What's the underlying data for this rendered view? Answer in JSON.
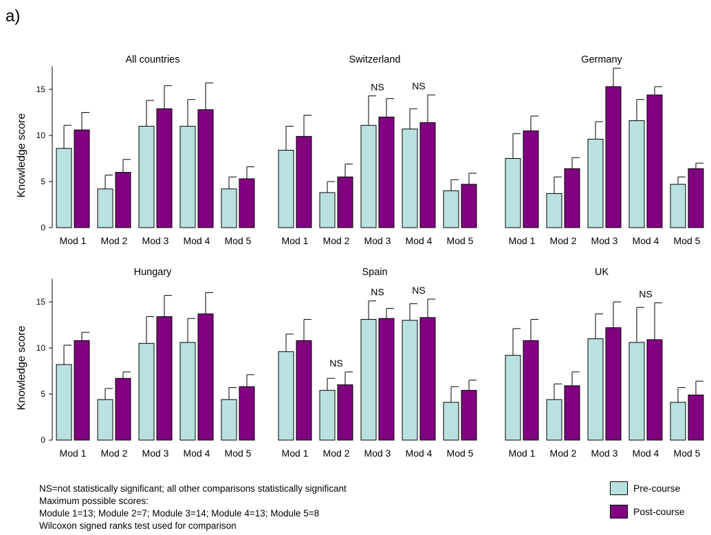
{
  "panel_label": "a)",
  "colors": {
    "pre": "#b9e1e0",
    "post": "#800080",
    "outline": "#000000"
  },
  "legend": {
    "pre": "Pre-course",
    "post": "Post-course"
  },
  "footnotes": [
    "NS=not statistically significant; all other comparisons statistically significant",
    "Maximum possible scores:",
    "Module 1=13; Module 2=7; Module 3=14; Module 4=13; Module 5=8",
    "Wilcoxon signed ranks test used for comparison"
  ],
  "chart_data": [
    {
      "type": "bar",
      "title": "All countries",
      "ylabel": "Knowledge score",
      "ylim": [
        0,
        17.5
      ],
      "yticks": [
        0,
        5,
        10,
        15
      ],
      "categories": [
        "Mod 1",
        "Mod 2",
        "Mod 3",
        "Mod 4",
        "Mod 5"
      ],
      "series": [
        {
          "name": "Pre-course",
          "values": [
            8.6,
            4.2,
            11.0,
            11.0,
            4.2
          ],
          "error": [
            2.5,
            1.5,
            2.8,
            2.9,
            1.3
          ]
        },
        {
          "name": "Post-course",
          "values": [
            10.6,
            6.0,
            12.9,
            12.8,
            5.3
          ],
          "error": [
            1.9,
            1.4,
            2.5,
            2.9,
            1.3
          ]
        }
      ],
      "annotations": []
    },
    {
      "type": "bar",
      "title": "Switzerland",
      "ylim": [
        0,
        17.5
      ],
      "categories": [
        "Mod 1",
        "Mod 2",
        "Mod 3",
        "Mod 4",
        "Mod 5"
      ],
      "series": [
        {
          "name": "Pre-course",
          "values": [
            8.4,
            3.8,
            11.1,
            10.7,
            4.0
          ],
          "error": [
            2.6,
            1.2,
            3.2,
            2.2,
            1.2
          ]
        },
        {
          "name": "Post-course",
          "values": [
            9.9,
            5.5,
            12.0,
            11.4,
            4.7
          ],
          "error": [
            2.3,
            1.4,
            2.0,
            3.0,
            1.2
          ]
        }
      ],
      "annotations": [
        {
          "category": 2,
          "text": "NS"
        },
        {
          "category": 3,
          "text": "NS"
        }
      ]
    },
    {
      "type": "bar",
      "title": "Germany",
      "ylim": [
        0,
        17.5
      ],
      "categories": [
        "Mod 1",
        "Mod 2",
        "Mod 3",
        "Mod 4",
        "Mod 5"
      ],
      "series": [
        {
          "name": "Pre-course",
          "values": [
            7.5,
            3.7,
            9.6,
            11.6,
            4.7
          ],
          "error": [
            2.7,
            1.8,
            1.9,
            2.3,
            0.8
          ]
        },
        {
          "name": "Post-course",
          "values": [
            10.5,
            6.4,
            15.3,
            14.4,
            6.4
          ],
          "error": [
            1.6,
            1.2,
            2.0,
            0.9,
            0.6
          ]
        }
      ],
      "annotations": []
    },
    {
      "type": "bar",
      "title": "Hungary",
      "ylabel": "Knowledge score",
      "ylim": [
        0,
        17.5
      ],
      "yticks": [
        0,
        5,
        10,
        15
      ],
      "categories": [
        "Mod 1",
        "Mod 2",
        "Mod 3",
        "Mod 4",
        "Mod 5"
      ],
      "series": [
        {
          "name": "Pre-course",
          "values": [
            8.2,
            4.4,
            10.5,
            10.6,
            4.4
          ],
          "error": [
            2.1,
            1.2,
            2.9,
            2.6,
            1.3
          ]
        },
        {
          "name": "Post-course",
          "values": [
            10.8,
            6.7,
            13.4,
            13.7,
            5.8
          ],
          "error": [
            0.9,
            0.7,
            2.3,
            2.3,
            1.3
          ]
        }
      ],
      "annotations": []
    },
    {
      "type": "bar",
      "title": "Spain",
      "ylim": [
        0,
        17.5
      ],
      "categories": [
        "Mod 1",
        "Mod 2",
        "Mod 3",
        "Mod 4",
        "Mod 5"
      ],
      "series": [
        {
          "name": "Pre-course",
          "values": [
            9.6,
            5.4,
            13.1,
            13.0,
            4.1
          ],
          "error": [
            1.9,
            1.3,
            2.0,
            1.8,
            1.7
          ]
        },
        {
          "name": "Post-course",
          "values": [
            10.8,
            6.0,
            13.2,
            13.3,
            5.4
          ],
          "error": [
            2.3,
            1.4,
            1.1,
            2.0,
            1.1
          ]
        }
      ],
      "annotations": [
        {
          "category": 1,
          "text": "NS"
        },
        {
          "category": 2,
          "text": "NS"
        },
        {
          "category": 3,
          "text": "NS"
        }
      ]
    },
    {
      "type": "bar",
      "title": "UK",
      "ylim": [
        0,
        17.5
      ],
      "categories": [
        "Mod 1",
        "Mod 2",
        "Mod 3",
        "Mod 4",
        "Mod 5"
      ],
      "series": [
        {
          "name": "Pre-course",
          "values": [
            9.2,
            4.4,
            11.0,
            10.6,
            4.1
          ],
          "error": [
            2.9,
            1.7,
            2.7,
            3.8,
            1.6
          ]
        },
        {
          "name": "Post-course",
          "values": [
            10.8,
            5.9,
            12.2,
            10.9,
            4.9
          ],
          "error": [
            2.3,
            1.5,
            2.8,
            4.0,
            1.5
          ]
        }
      ],
      "annotations": [
        {
          "category": 3,
          "text": "NS"
        }
      ]
    }
  ]
}
